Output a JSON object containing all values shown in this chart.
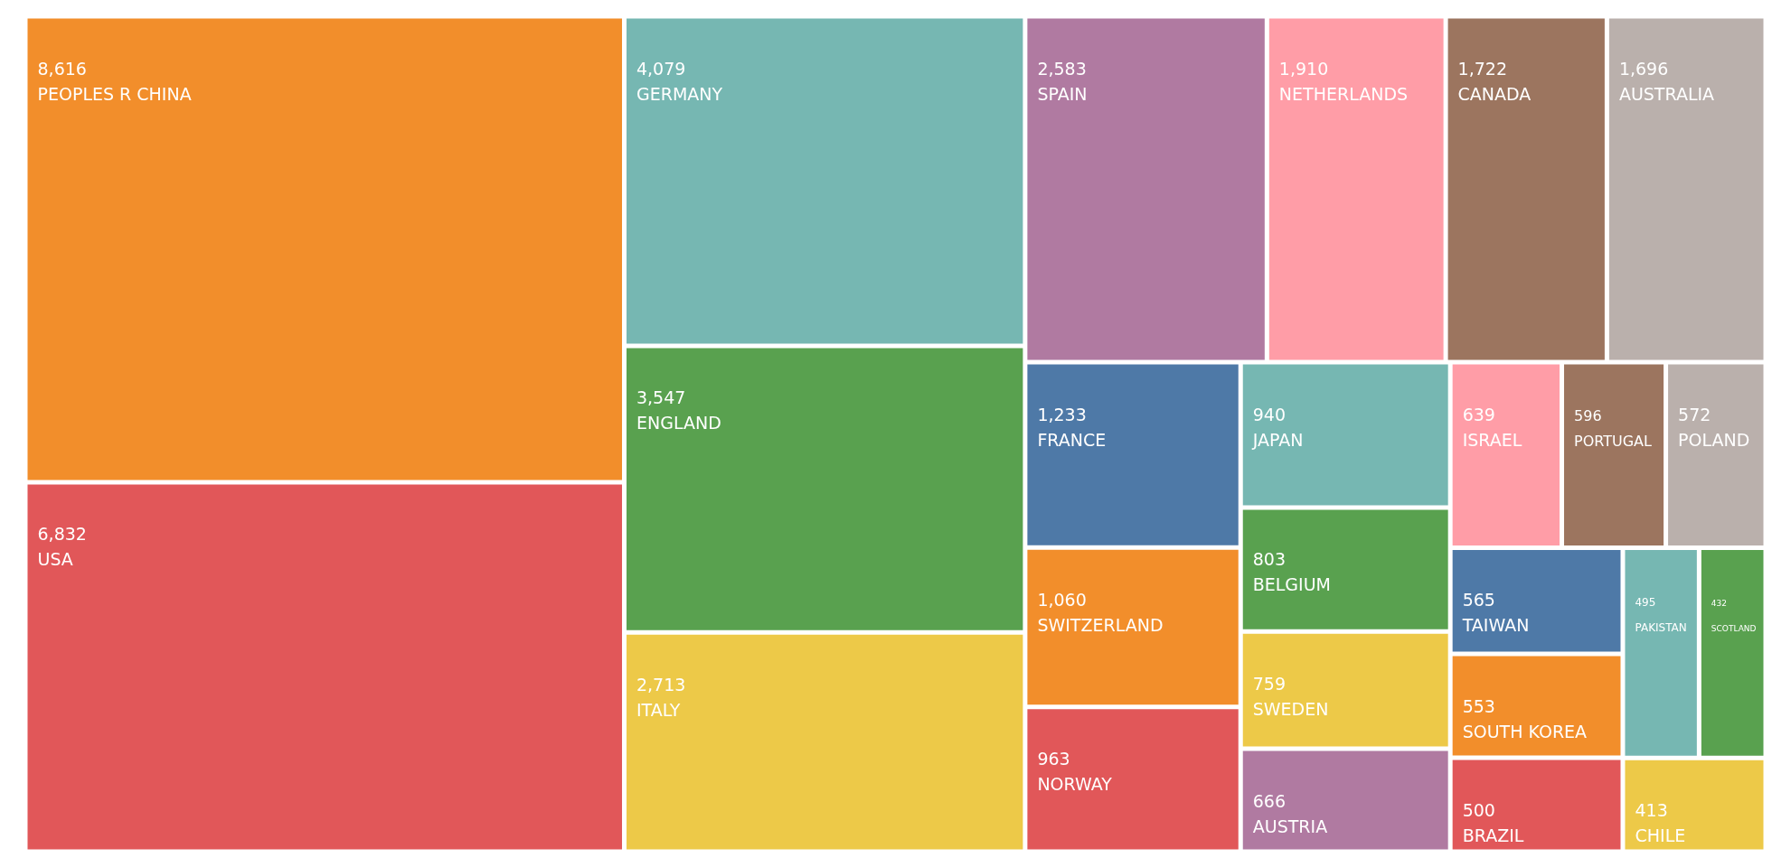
{
  "chart_data": {
    "type": "other",
    "value_labels": [
      "8,616",
      "6,832",
      "4,079",
      "3,547",
      "2,713",
      "2,583",
      "1,910",
      "1,722",
      "1,696",
      "1,233",
      "1,060",
      "963",
      "940",
      "803",
      "759",
      "666",
      "639",
      "596",
      "572",
      "565",
      "553",
      "500",
      "495",
      "432",
      "413"
    ],
    "categories": [
      "PEOPLES R CHINA",
      "USA",
      "GERMANY",
      "ENGLAND",
      "ITALY",
      "SPAIN",
      "NETHERLANDS",
      "CANADA",
      "AUSTRALIA",
      "FRANCE",
      "SWITZERLAND",
      "NORWAY",
      "JAPAN",
      "BELGIUM",
      "SWEDEN",
      "AUSTRIA",
      "ISRAEL",
      "PORTUGAL",
      "POLAND",
      "TAIWAN",
      "SOUTH KOREA",
      "BRAZIL",
      "PAKISTAN",
      "SCOTLAND",
      "CHILE"
    ],
    "values": [
      8616,
      6832,
      4079,
      3547,
      2713,
      2583,
      1910,
      1722,
      1696,
      1233,
      1060,
      963,
      940,
      803,
      759,
      666,
      639,
      596,
      572,
      565,
      553,
      500,
      495,
      432,
      413
    ],
    "colors": [
      "#f28e2b",
      "#e15759",
      "#76b7b2",
      "#59a14f",
      "#edc948",
      "#b07aa1",
      "#ff9da7",
      "#9c755f",
      "#bab0ac",
      "#4e79a7",
      "#f28e2b",
      "#e15759",
      "#76b7b2",
      "#59a14f",
      "#edc948",
      "#b07aa1",
      "#ff9da7",
      "#9c755f",
      "#bab0ac",
      "#4e79a7",
      "#f28e2b",
      "#e15759",
      "#76b7b2",
      "#59a14f",
      "#edc948"
    ]
  }
}
